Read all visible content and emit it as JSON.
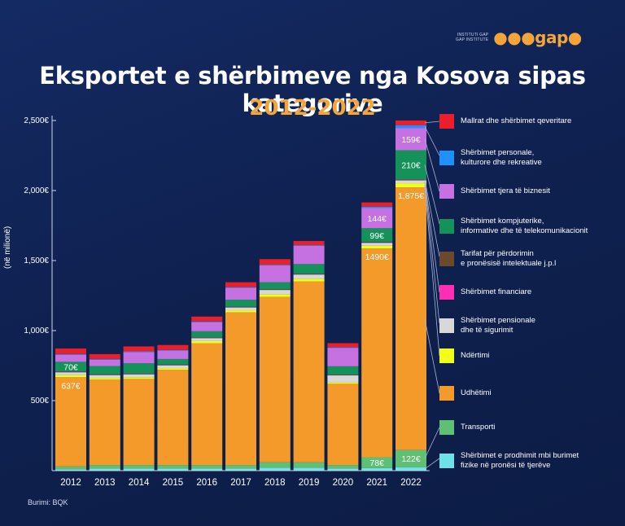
{
  "logo": {
    "line1": "INSTITUTI GAP",
    "line2": "GAP INSTITUTE",
    "mark": "gap"
  },
  "title": "Eksportet e shërbimeve nga Kosova sipas kategorive",
  "subtitle": "2012-2022",
  "source": "Burimi: BQK",
  "colors": {
    "accent": "#f3a53a",
    "background": "#0f2150"
  },
  "chart_data": {
    "type": "bar",
    "stacked": true,
    "ylabel": "(në milionë)",
    "ylim": [
      0,
      2500
    ],
    "yticks": [
      {
        "value": 500,
        "label": "500€"
      },
      {
        "value": 1000,
        "label": "1,000€"
      },
      {
        "value": 1500,
        "label": "1,500€"
      },
      {
        "value": 2000,
        "label": "2,000€"
      },
      {
        "value": 2500,
        "label": "2,500€"
      }
    ],
    "categories": [
      "2012",
      "2013",
      "2014",
      "2015",
      "2016",
      "2017",
      "2018",
      "2019",
      "2020",
      "2021",
      "2022"
    ],
    "series": [
      {
        "name": "Shërbimet e prodhimit mbi burimet fizike në pronësi të tjerëve",
        "color": "#6de0e8",
        "values": [
          10,
          15,
          15,
          15,
          15,
          15,
          20,
          20,
          15,
          18,
          25
        ]
      },
      {
        "name": "Transporti",
        "color": "#5fbf74",
        "values": [
          20,
          25,
          25,
          25,
          25,
          25,
          40,
          40,
          25,
          78,
          122
        ]
      },
      {
        "name": "Udhëtimi",
        "color": "#f39a2a",
        "values": [
          637,
          610,
          615,
          680,
          870,
          1090,
          1180,
          1290,
          580,
          1490,
          1875
        ]
      },
      {
        "name": "Ndërtimi",
        "color": "#f0ff1a",
        "values": [
          15,
          12,
          12,
          12,
          15,
          15,
          20,
          20,
          10,
          20,
          30
        ]
      },
      {
        "name": "Shërbimet pensionale dhe të sigurimit",
        "color": "#d8d8d8",
        "values": [
          20,
          20,
          20,
          20,
          20,
          20,
          30,
          30,
          50,
          20,
          20
        ]
      },
      {
        "name": "Shërbimet financiare",
        "color": "#ff2db4",
        "values": [
          2,
          2,
          2,
          2,
          2,
          2,
          2,
          2,
          2,
          3,
          3
        ]
      },
      {
        "name": "Tarifat për përdorimin e pronësisë intelektuale j.p.l",
        "color": "#6a4a2a",
        "values": [
          3,
          3,
          3,
          3,
          3,
          3,
          3,
          3,
          3,
          3,
          3
        ]
      },
      {
        "name": "Shërbimet kompjuterike, informative dhe të telekomunikacionit",
        "color": "#15925a",
        "values": [
          70,
          60,
          75,
          40,
          45,
          50,
          50,
          70,
          60,
          99,
          210
        ]
      },
      {
        "name": "Shërbimet tjera të biznesit",
        "color": "#c571e2",
        "values": [
          50,
          45,
          80,
          60,
          65,
          85,
          120,
          130,
          130,
          144,
          159
        ]
      },
      {
        "name": "Shërbimet personale, kulturore dhe rekreative",
        "color": "#1e90ff",
        "values": [
          5,
          5,
          5,
          5,
          5,
          5,
          5,
          5,
          5,
          10,
          20
        ]
      },
      {
        "name": "Mallrat dhe shërbimet qeveritare",
        "color": "#ea1f2a",
        "values": [
          40,
          35,
          35,
          35,
          35,
          35,
          40,
          30,
          30,
          30,
          33
        ]
      }
    ],
    "data_labels": [
      {
        "year": "2012",
        "series": "Udhëtimi",
        "text": "637€"
      },
      {
        "year": "2012",
        "series": "Shërbimet kompjuterike, informative dhe të telekomunikacionit",
        "text": "70€"
      },
      {
        "year": "2021",
        "series": "Transporti",
        "text": "78€"
      },
      {
        "year": "2021",
        "series": "Udhëtimi",
        "text": "1490€"
      },
      {
        "year": "2021",
        "series": "Shërbimet kompjuterike, informative dhe të telekomunikacionit",
        "text": "99€"
      },
      {
        "year": "2021",
        "series": "Shërbimet tjera të biznesit",
        "text": "144€"
      },
      {
        "year": "2022",
        "series": "Transporti",
        "text": "122€"
      },
      {
        "year": "2022",
        "series": "Udhëtimi",
        "text": "1,875€"
      },
      {
        "year": "2022",
        "series": "Shërbimet kompjuterike, informative dhe të telekomunikacionit",
        "text": "210€"
      },
      {
        "year": "2022",
        "series": "Shërbimet tjera të biznesit",
        "text": "159€"
      }
    ],
    "legend": [
      {
        "line1": "Mallrat dhe shërbimet qeveritare",
        "line2": "",
        "color": "#ea1f2a"
      },
      {
        "line1": "Shërbimet personale,",
        "line2": "kulturore dhe rekreative",
        "color": "#1e90ff"
      },
      {
        "line1": "Shërbimet tjera të biznesit",
        "line2": "",
        "color": "#c571e2"
      },
      {
        "line1": "Shërbimet kompjuterike,",
        "line2": "informative dhe të telekomunikacionit",
        "color": "#15925a"
      },
      {
        "line1": "Tarifat për përdorimin",
        "line2": "e pronësisë intelektuale j.p.l",
        "color": "#6a4a2a"
      },
      {
        "line1": "Shërbimet financiare",
        "line2": "",
        "color": "#ff2db4"
      },
      {
        "line1": "Shërbimet pensionale",
        "line2": "dhe të sigurimit",
        "color": "#d8d8d8"
      },
      {
        "line1": "Ndërtimi",
        "line2": "",
        "color": "#f0ff1a"
      },
      {
        "line1": "Udhëtimi",
        "line2": "",
        "color": "#f39a2a"
      },
      {
        "line1": "Transporti",
        "line2": "",
        "color": "#5fbf74"
      },
      {
        "line1": "Shërbimet e prodhimit mbi burimet",
        "line2": "fizike në pronësi të tjerëve",
        "color": "#6de0e8"
      }
    ]
  }
}
